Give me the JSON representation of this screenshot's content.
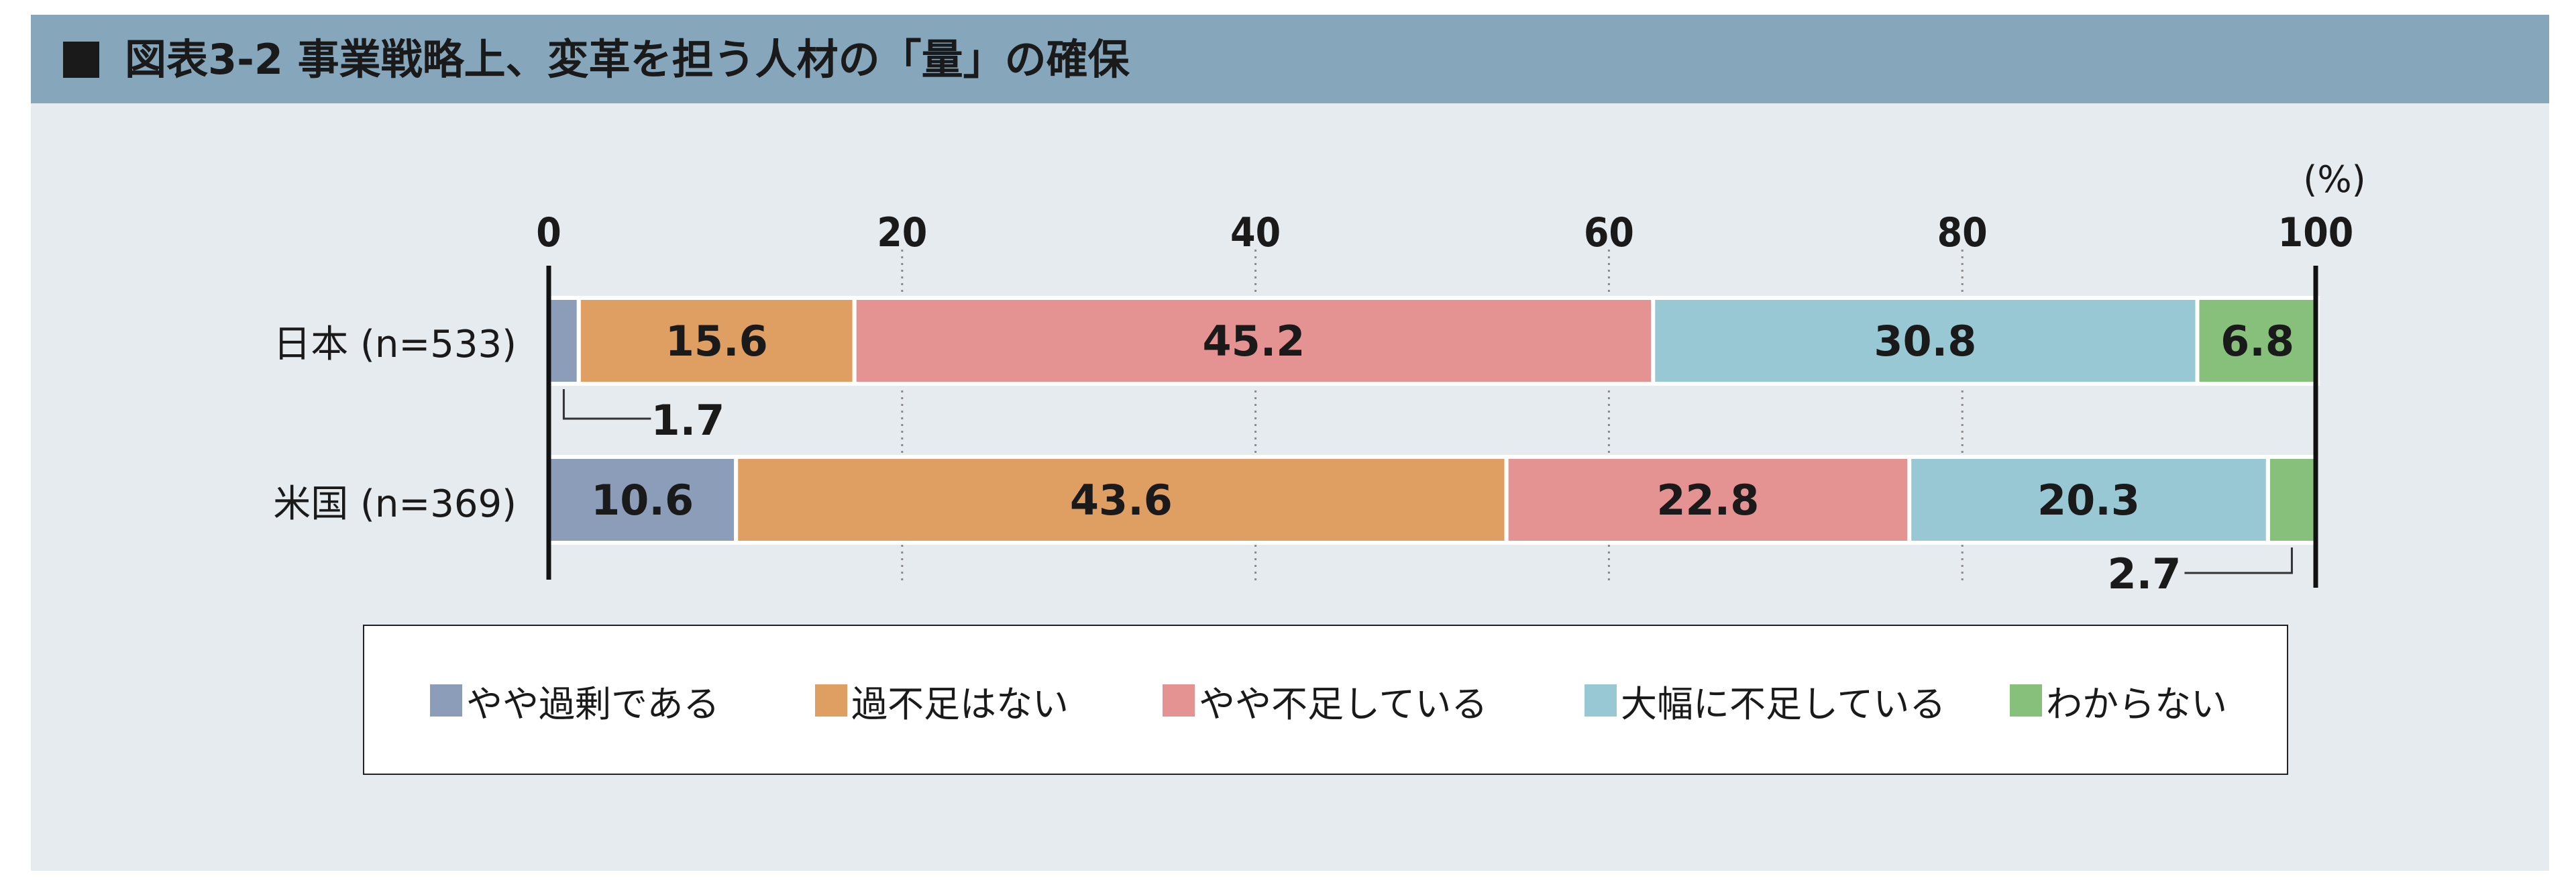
{
  "title": "図表3-2 事業戦略上、変革を担う人材の「量」の確保",
  "colors": {
    "header_bg": "#86a7bb",
    "panel_bg": "#e6ebef",
    "series": [
      "#8b9db8",
      "#e09f62",
      "#e59293",
      "#98c8d4",
      "#87c07a"
    ]
  },
  "chart_data": {
    "type": "bar",
    "orientation": "horizontal",
    "stacked": true,
    "unit_label": "(%)",
    "xlim": [
      0,
      100
    ],
    "x_ticks": [
      "0",
      "20",
      "40",
      "60",
      "80",
      "100"
    ],
    "categories": [
      "日本 (n=533)",
      "米国 (n=369)"
    ],
    "series": [
      {
        "name": "やや過剰である",
        "values": [
          1.7,
          10.6
        ]
      },
      {
        "name": "過不足はない",
        "values": [
          15.6,
          43.6
        ]
      },
      {
        "name": "やや不足している",
        "values": [
          45.2,
          22.8
        ]
      },
      {
        "name": "大幅に不足している",
        "values": [
          30.8,
          20.3
        ]
      },
      {
        "name": "わからない",
        "values": [
          6.8,
          2.7
        ]
      }
    ],
    "data_labels": [
      [
        "1.7",
        "15.6",
        "45.2",
        "30.8",
        "6.8"
      ],
      [
        "10.6",
        "43.6",
        "22.8",
        "20.3",
        "2.7"
      ]
    ],
    "legend_position": "bottom",
    "grid": "dotted vertical"
  }
}
